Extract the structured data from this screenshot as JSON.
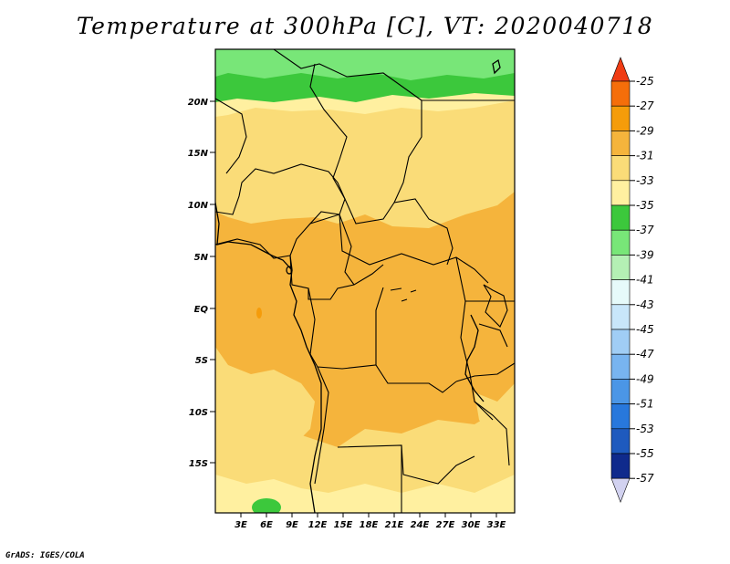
{
  "title": "Temperature at 300hPa [C], VT: 2020040718",
  "credit": "GrADS: IGES/COLA",
  "map": {
    "lon_labels": [
      "3E",
      "6E",
      "9E",
      "12E",
      "15E",
      "18E",
      "21E",
      "24E",
      "27E",
      "30E",
      "33E"
    ],
    "lat_labels": [
      "20N",
      "15N",
      "10N",
      "5N",
      "EQ",
      "5S",
      "10S",
      "15S"
    ]
  },
  "colorbar": {
    "levels": [
      "-25",
      "-27",
      "-29",
      "-31",
      "-33",
      "-35",
      "-37",
      "-39",
      "-41",
      "-43",
      "-45",
      "-47",
      "-49",
      "-51",
      "-53",
      "-55",
      "-57"
    ],
    "colors": [
      "#f03c14",
      "#f56e0a",
      "#f59c0a",
      "#f5b43c",
      "#fadc78",
      "#fff0a0",
      "#3cc83c",
      "#78e678",
      "#b4f0b4",
      "#e6fafa",
      "#c8e6fa",
      "#a0cdf5",
      "#78b4f0",
      "#4b96e6",
      "#2878dc",
      "#1e5abe",
      "#0f2a8c",
      "#000064",
      "#d2d2f0"
    ]
  },
  "palette": {
    "orange": "#f5b43c",
    "light_orange": "#fadc78",
    "yellow": "#fff0a0",
    "green": "#3cc83c",
    "light_green": "#78e678"
  }
}
